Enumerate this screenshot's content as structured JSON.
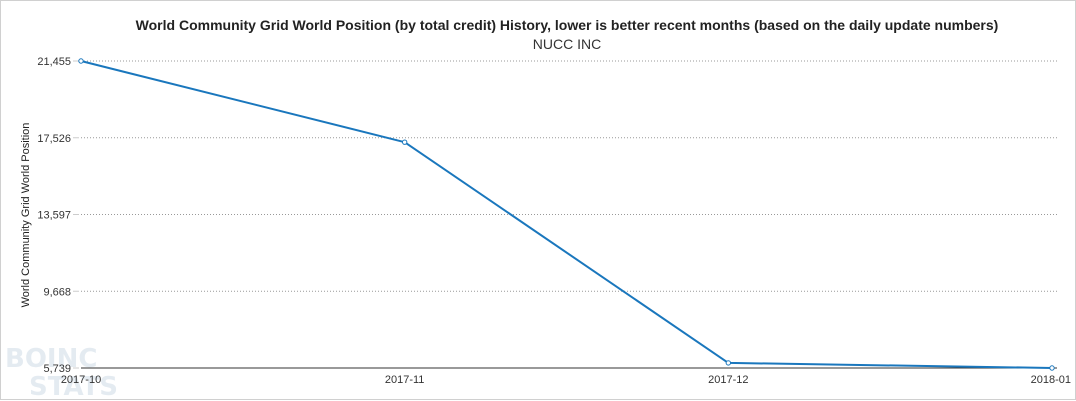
{
  "chart_data": {
    "type": "line",
    "title": "World Community Grid World Position (by total credit) History, lower is better recent months (based on the daily update numbers)",
    "subtitle": "NUCC INC",
    "xlabel": "",
    "ylabel": "World Community Grid World Position",
    "categories": [
      "2017-10",
      "2017-11",
      "2017-12",
      "2018-01"
    ],
    "series": [
      {
        "values": [
          21455,
          17300,
          6000,
          5739
        ]
      }
    ],
    "y_ticks": [
      5739,
      9668,
      13597,
      17526,
      21455
    ],
    "y_tick_labels": [
      "5,739",
      "9,668",
      "13,597",
      "17,526",
      "21,455"
    ],
    "ylim": [
      5739,
      21455
    ],
    "grid": true,
    "legend": "none",
    "colors": {
      "line": "#1a77bd",
      "grid": "#999999",
      "axis": "#333333"
    }
  },
  "watermark": {
    "line1": "BOINC",
    "line2": "STATS"
  }
}
